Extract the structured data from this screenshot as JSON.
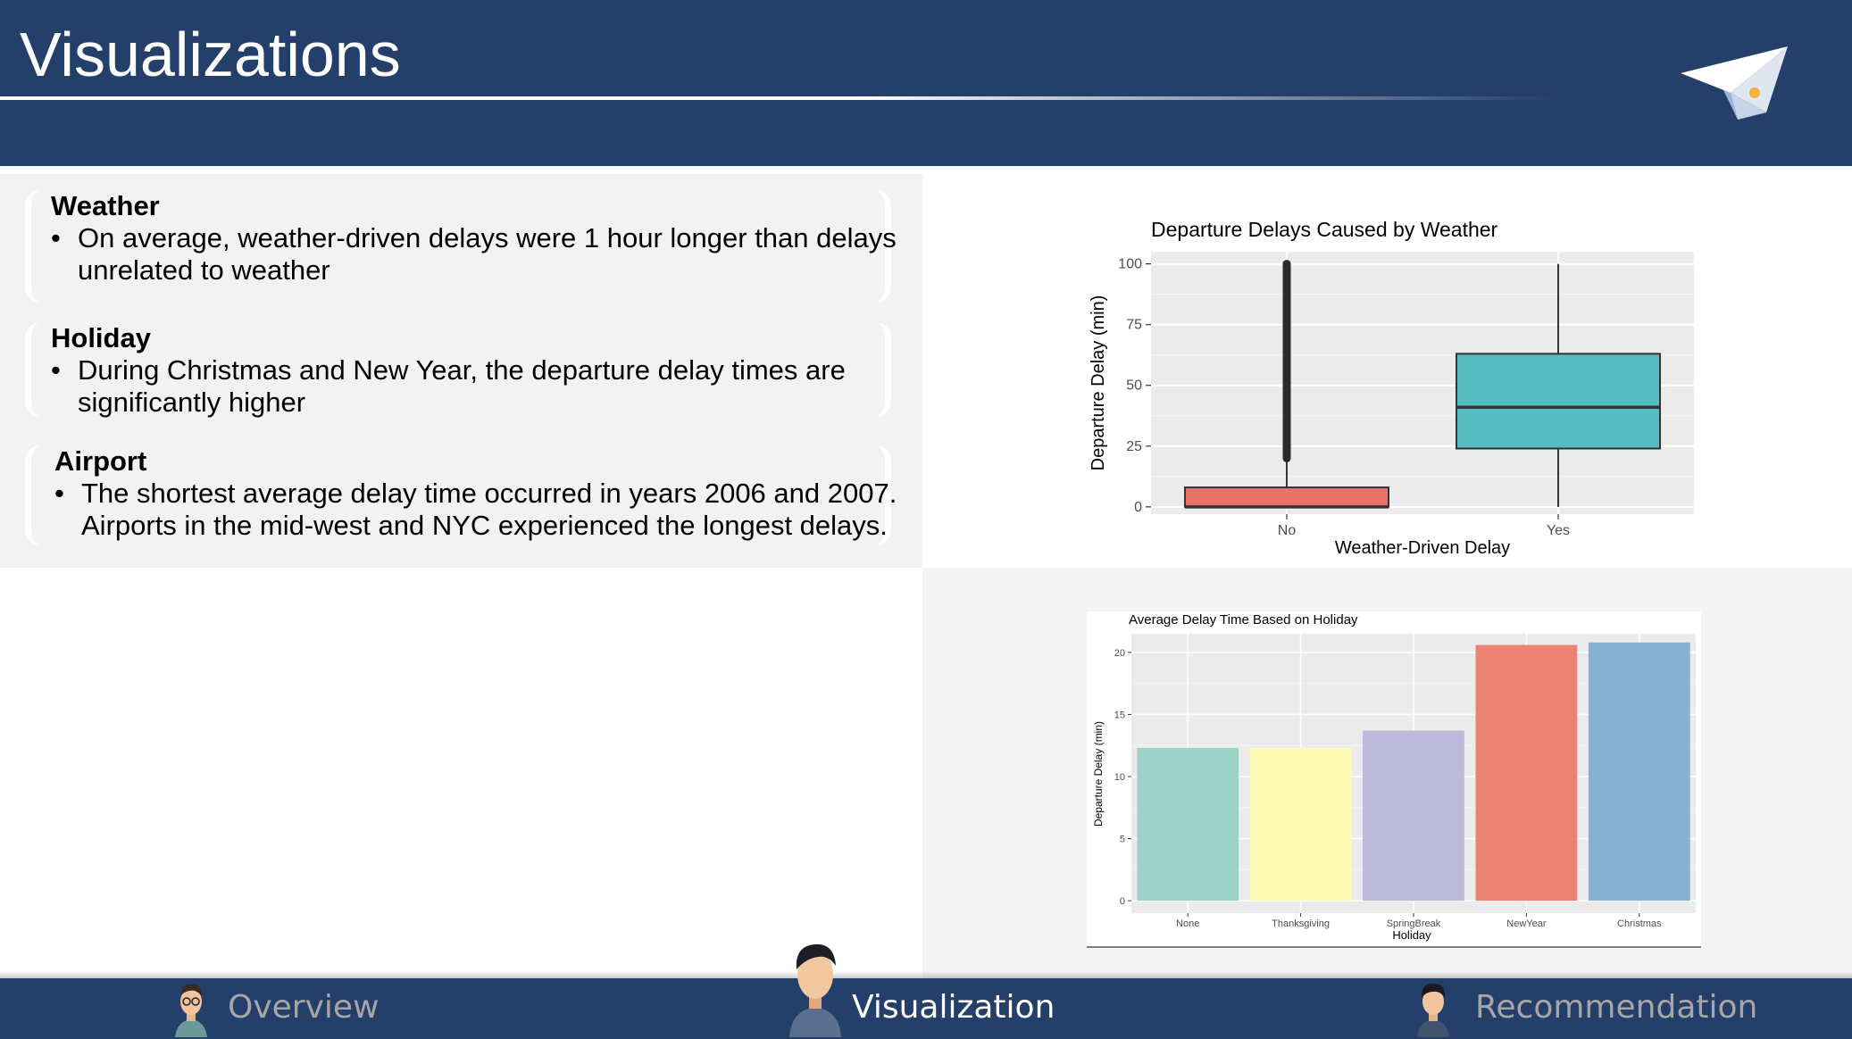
{
  "header": {
    "title": "Visualizations",
    "logo": "paper-plane-icon"
  },
  "cards": [
    {
      "title": "Weather",
      "text": "On average, weather-driven delays were 1 hour longer than delays unrelated to weather"
    },
    {
      "title": "Holiday",
      "text": "During Christmas and New Year, the departure delay times are significantly higher"
    },
    {
      "title": "Airport",
      "text": "The shortest average delay time occurred in years 2006 and 2007. Airports in the mid-west and NYC experienced the longest delays."
    }
  ],
  "bullet": "•",
  "nav": {
    "overview": "Overview",
    "visualization": "Visualization",
    "recommendation": "Recommendation",
    "active_color": "#ffffff",
    "inactive_color": "#a6a6a6"
  },
  "colors": {
    "header": "#253f6b",
    "panel_bg": "#ebebeb",
    "grid": "#ffffff"
  },
  "chart_data": [
    {
      "type": "box",
      "title": "Departure Delays Caused by Weather",
      "xlabel": "Weather-Driven Delay",
      "ylabel": "Departure Delay (min)",
      "ylim": [
        -3,
        105
      ],
      "yticks": [
        0,
        25,
        50,
        75,
        100
      ],
      "ytick_labels": [
        "0",
        "25",
        "50",
        "75",
        "100"
      ],
      "categories": [
        "No",
        "Yes"
      ],
      "boxes": [
        {
          "category": "No",
          "q1": 0,
          "median": 0,
          "q3": 8,
          "whisker_low": 0,
          "whisker_high": 20,
          "outliers_from": 20,
          "outliers_to": 100,
          "color": "#e8736c"
        },
        {
          "category": "Yes",
          "q1": 24,
          "median": 41,
          "q3": 63,
          "whisker_low": 0,
          "whisker_high": 100,
          "color": "#55bcc2"
        }
      ],
      "grid": true,
      "legend": "none"
    },
    {
      "type": "bar",
      "title": "Average Delay Time Based on Holiday",
      "xlabel": "Holiday",
      "ylabel": "Departure Delay (min)",
      "ylim": [
        -1,
        21.5
      ],
      "yticks": [
        0,
        5,
        10,
        15,
        20
      ],
      "ytick_labels": [
        "0",
        "5",
        "10",
        "15",
        "20"
      ],
      "categories": [
        "None",
        "Thanksgiving",
        "SpringBreak",
        "NewYear",
        "Christmas"
      ],
      "values": [
        12.3,
        12.3,
        13.7,
        20.6,
        20.8
      ],
      "colors": [
        "#9dd3c7",
        "#fefbb6",
        "#bdbad9",
        "#eb8375",
        "#89b1d2"
      ],
      "grid": true,
      "legend": "none"
    }
  ]
}
